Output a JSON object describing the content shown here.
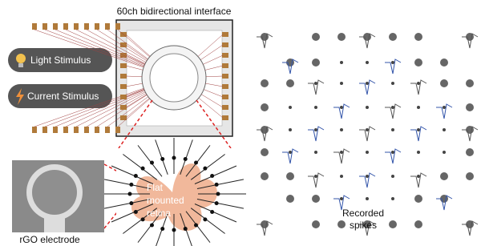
{
  "header": {
    "title": "60ch bidirectional interface"
  },
  "stimuli": [
    "Light Stimulus",
    "Current Stimulus"
  ],
  "electrode_label": "rGO electrode",
  "retina_label": [
    "Flat",
    "mounted",
    "retina"
  ],
  "spikes_label": [
    "Recorded",
    "spikes"
  ]
}
